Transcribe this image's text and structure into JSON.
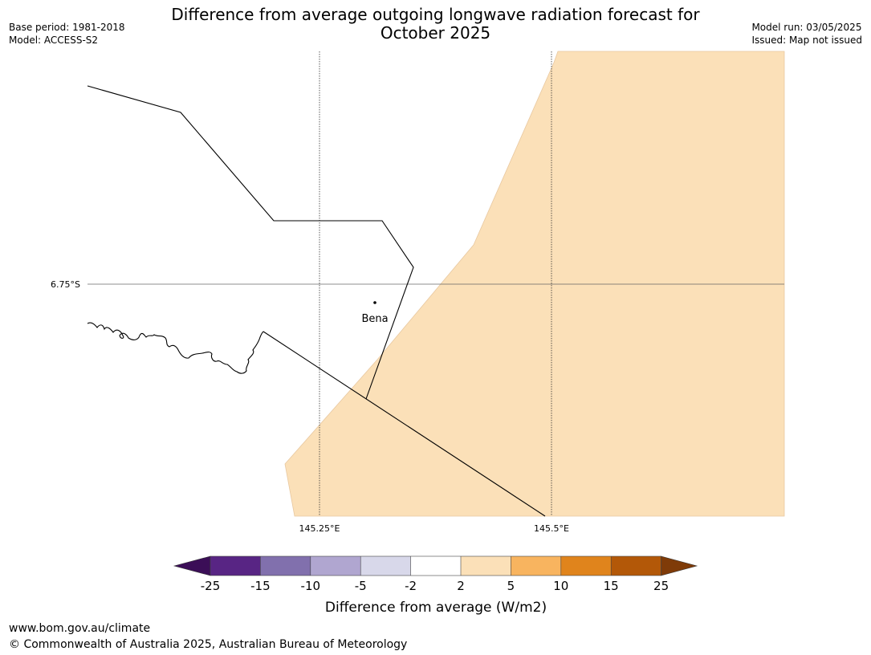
{
  "title_line1": "Difference from average outgoing longwave radiation forecast for",
  "title_line2": "October 2025",
  "base_period": "Base period: 1981-2018",
  "model": "Model: ACCESS-S2",
  "model_run": "Model run: 03/05/2025",
  "issued": "Issued: Map not issued",
  "map": {
    "latitude_label": "6.75°S",
    "longitude_labels": [
      "145.25°E",
      "145.5°E"
    ],
    "place_label": "Bena",
    "fill_color": "#fbe0b8",
    "fill_class": "2 to 5"
  },
  "colorbar": {
    "ticks": [
      "-25",
      "-15",
      "-10",
      "-5",
      "-2",
      "2",
      "5",
      "10",
      "15",
      "25"
    ],
    "colors": [
      "#3b0e57",
      "#582584",
      "#8170ad",
      "#b0a6d0",
      "#d8d8ea",
      "#ffffff",
      "#fbe0b8",
      "#f8b45f",
      "#e0841c",
      "#b35808",
      "#7f3b08"
    ],
    "label": "Difference from average (W/m2)"
  },
  "footer_url": "www.bom.gov.au/climate",
  "footer_copyright": "© Commonwealth of Australia 2025, Australian Bureau of Meteorology"
}
